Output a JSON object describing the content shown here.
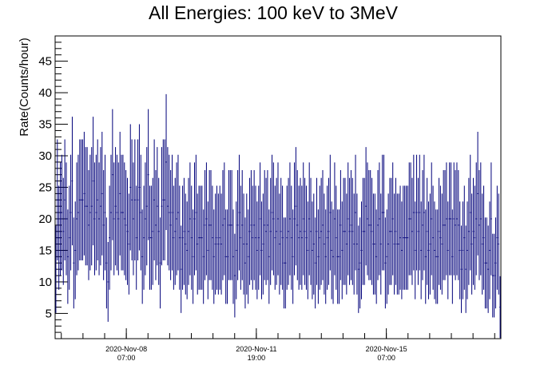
{
  "chart_data": {
    "type": "scatter",
    "title": "All Energies:  100 keV to 3MeV",
    "xlabel": "",
    "ylabel": "Rate(Counts/hour)",
    "ylim": [
      1,
      49
    ],
    "yticks": [
      5,
      10,
      15,
      20,
      25,
      30,
      35,
      40,
      45
    ],
    "xlim_hours": [
      0,
      288
    ],
    "xtick_labels": [
      {
        "date": "2020-Nov-08",
        "time": "07:00"
      },
      {
        "date": "2020-Nov-11",
        "time": "19:00"
      },
      {
        "date": "2020-Nov-15",
        "time": "07:00"
      }
    ],
    "xtick_hours": [
      46,
      130,
      214
    ],
    "error_bars": true,
    "grid": false,
    "series_color": "#00007a",
    "series": [
      {
        "name": "",
        "values": [
          12,
          23,
          17,
          20,
          21,
          18,
          23,
          20,
          14,
          17,
          21,
          26,
          13,
          15,
          20,
          21,
          23,
          23,
          23,
          24,
          22,
          22,
          19,
          21,
          22,
          26,
          20,
          21,
          23,
          20,
          22,
          24,
          19,
          21,
          13,
          10,
          17,
          21,
          27,
          20,
          22,
          21,
          20,
          24,
          21,
          21,
          20,
          19,
          18,
          16,
          25,
          23,
          20,
          23,
          17,
          23,
          25,
          21,
          14,
          17,
          20,
          22,
          27,
          17,
          17,
          18,
          23,
          19,
          22,
          18,
          13,
          22,
          23,
          23,
          29,
          22,
          21,
          19,
          21,
          17,
          18,
          20,
          21,
          17,
          12,
          17,
          18,
          16,
          15,
          18,
          20,
          17,
          14,
          20,
          21,
          16,
          17,
          17,
          17,
          14,
          19,
          20,
          15,
          19,
          19,
          17,
          14,
          16,
          17,
          16,
          17,
          16,
          19,
          20,
          14,
          14,
          19,
          19,
          19,
          14,
          11,
          15,
          19,
          21,
          17,
          19,
          16,
          13,
          16,
          14,
          18,
          19,
          17,
          19,
          17,
          15,
          17,
          20,
          15,
          16,
          19,
          18,
          19,
          14,
          18,
          21,
          20,
          17,
          18,
          20,
          16,
          18,
          17,
          13,
          13,
          17,
          18,
          20,
          17,
          14,
          20,
          22,
          19,
          17,
          18,
          17,
          20,
          18,
          17,
          15,
          20,
          18,
          15,
          16,
          13,
          18,
          14,
          17,
          18,
          19,
          16,
          14,
          17,
          18,
          21,
          15,
          14,
          20,
          17,
          14,
          14,
          19,
          15,
          18,
          18,
          16,
          20,
          18,
          19,
          18,
          16,
          21,
          16,
          12,
          13,
          15,
          18,
          18,
          22,
          20,
          19,
          19,
          18,
          16,
          16,
          14,
          19,
          20,
          16,
          21,
          21,
          13,
          14,
          16,
          18,
          18,
          20,
          16,
          18,
          16,
          16,
          17,
          15,
          17,
          17,
          17,
          17,
          20,
          20,
          18,
          21,
          15,
          21,
          18,
          21,
          15,
          19,
          21,
          14,
          18,
          15,
          16,
          20,
          17,
          15,
          14,
          14,
          18,
          17,
          16,
          19,
          19,
          20,
          15,
          20,
          20,
          14,
          20,
          19,
          20,
          19,
          15,
          12,
          15,
          17,
          12,
          15,
          18,
          21,
          16,
          18,
          17,
          20,
          24,
          19,
          20,
          16,
          17,
          13,
          13,
          12,
          15,
          20,
          11,
          11,
          13,
          17,
          16,
          6
        ]
      }
    ]
  }
}
